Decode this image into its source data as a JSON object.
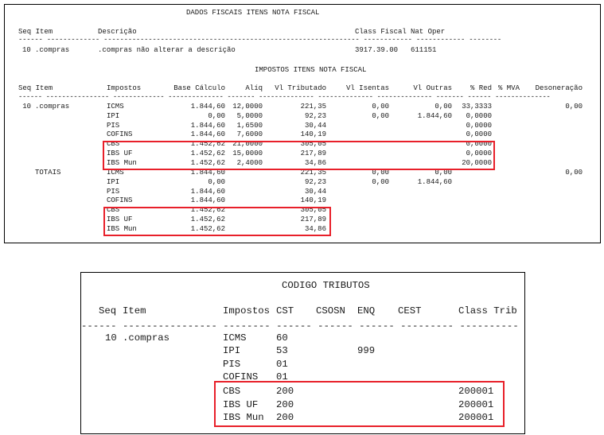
{
  "fiscal": {
    "title": "DADOS FISCAIS ITENS NOTA FISCAL",
    "headers": {
      "seq_item": "Seq Item",
      "descricao": "Descrição",
      "class_fiscal": "Class Fiscal",
      "nat_oper": "Nat Oper"
    },
    "dashes": "------ ------------- --------------------------------------------------------------- ------------ ------------ --------",
    "row": {
      "seq": "10",
      "item": ".compras",
      "descricao": ".compras não alterar a descrição",
      "class_fiscal": "3917.39.00",
      "nat_oper": "611151"
    }
  },
  "impostos": {
    "title": "IMPOSTOS ITENS NOTA FISCAL",
    "headers": {
      "seq_item": "Seq Item",
      "impostos": "Impostos",
      "base": "Base Cálculo",
      "aliq": "Alíq",
      "vl_trib": "Vl Tributado",
      "vl_isentas": "Vl Isentas",
      "vl_outras": "Vl Outras",
      "red": "% Red",
      "mva": "% MVA",
      "deson": "Desoneração"
    },
    "dashes": "------ ---------------- ------------- -------------- ------- -------------- -------------- -------------- ------- ------ --------------",
    "seq": "10",
    "item": ".compras",
    "totais_label": "TOTAIS",
    "rows": [
      {
        "imp": "ICMS",
        "base": "1.844,60",
        "aliq": "12,0000",
        "trib": "221,35",
        "isentas": "0,00",
        "outras": "0,00",
        "red": "33,3333",
        "deson": "0,00"
      },
      {
        "imp": "IPI",
        "base": "0,00",
        "aliq": "5,0000",
        "trib": "92,23",
        "isentas": "0,00",
        "outras": "1.844,60",
        "red": "0,0000",
        "deson": ""
      },
      {
        "imp": "PIS",
        "base": "1.844,60",
        "aliq": "1,6500",
        "trib": "30,44",
        "isentas": "",
        "outras": "",
        "red": "0,0000",
        "deson": ""
      },
      {
        "imp": "COFINS",
        "base": "1.844,60",
        "aliq": "7,6000",
        "trib": "140,19",
        "isentas": "",
        "outras": "",
        "red": "0,0000",
        "deson": ""
      },
      {
        "imp": "CBS",
        "base": "1.452,62",
        "aliq": "21,0000",
        "trib": "305,05",
        "isentas": "",
        "outras": "",
        "red": "0,0000",
        "deson": ""
      },
      {
        "imp": "IBS UF",
        "base": "1.452,62",
        "aliq": "15,0000",
        "trib": "217,89",
        "isentas": "",
        "outras": "",
        "red": "0,0000",
        "deson": ""
      },
      {
        "imp": "IBS Mun",
        "base": "1.452,62",
        "aliq": "2,4000",
        "trib": "34,86",
        "isentas": "",
        "outras": "",
        "red": "20,0000",
        "deson": ""
      }
    ],
    "totais": [
      {
        "imp": "ICMS",
        "base": "1.844,60",
        "trib": "221,35",
        "isentas": "0,00",
        "outras": "0,00",
        "deson": "0,00"
      },
      {
        "imp": "IPI",
        "base": "0,00",
        "trib": "92,23",
        "isentas": "0,00",
        "outras": "1.844,60",
        "deson": ""
      },
      {
        "imp": "PIS",
        "base": "1.844,60",
        "trib": "30,44",
        "isentas": "",
        "outras": "",
        "deson": ""
      },
      {
        "imp": "COFINS",
        "base": "1.844,60",
        "trib": "140,19",
        "isentas": "",
        "outras": "",
        "deson": ""
      },
      {
        "imp": "CBS",
        "base": "1.452,62",
        "trib": "305,05",
        "isentas": "",
        "outras": "",
        "deson": ""
      },
      {
        "imp": "IBS UF",
        "base": "1.452,62",
        "trib": "217,89",
        "isentas": "",
        "outras": "",
        "deson": ""
      },
      {
        "imp": "IBS Mun",
        "base": "1.452,62",
        "trib": "34,86",
        "isentas": "",
        "outras": "",
        "deson": ""
      }
    ]
  },
  "codigo": {
    "title": "CODIGO TRIBUTOS",
    "headers": {
      "seq": "Seq",
      "item": "Item",
      "impostos": "Impostos",
      "cst": "CST",
      "csosn": "CSOSN",
      "enq": "ENQ",
      "cest": "CEST",
      "class_trib": "Class Trib"
    },
    "dashes": "------ ---------------- -------- ------ ------ ------ --------- ----------",
    "seq": "10",
    "item": ".compras",
    "rows": [
      {
        "imp": "ICMS",
        "cst": "60",
        "enq": "",
        "class_trib": ""
      },
      {
        "imp": "IPI",
        "cst": "53",
        "enq": "999",
        "class_trib": ""
      },
      {
        "imp": "PIS",
        "cst": "01",
        "enq": "",
        "class_trib": ""
      },
      {
        "imp": "COFINS",
        "cst": "01",
        "enq": "",
        "class_trib": ""
      },
      {
        "imp": "CBS",
        "cst": "200",
        "enq": "",
        "class_trib": "200001"
      },
      {
        "imp": "IBS UF",
        "cst": "200",
        "enq": "",
        "class_trib": "200001"
      },
      {
        "imp": "IBS Mun",
        "cst": "200",
        "enq": "",
        "class_trib": "200001"
      }
    ]
  },
  "colors": {
    "highlight": "#e8202a"
  }
}
